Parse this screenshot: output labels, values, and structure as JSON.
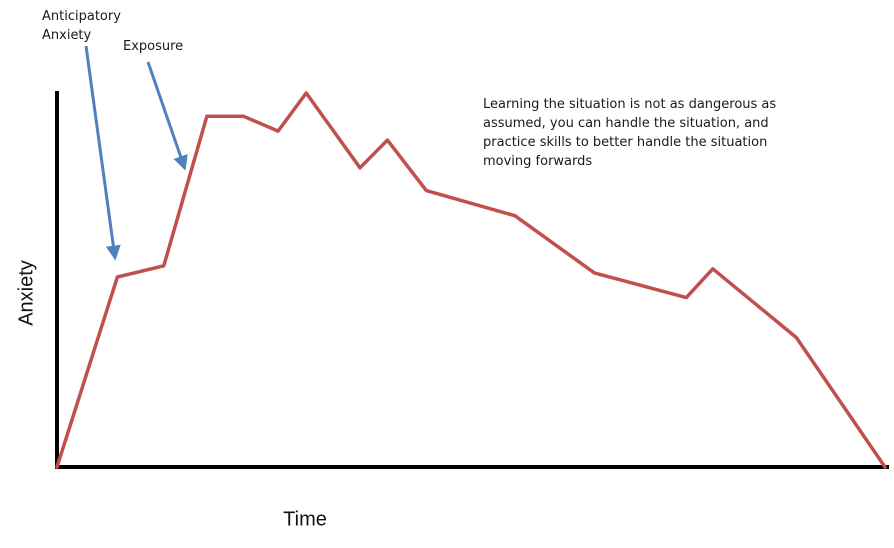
{
  "chart_data": {
    "type": "line",
    "title": "",
    "xlabel": "Time",
    "ylabel": "Anxiety",
    "xlim": [
      0,
      100
    ],
    "ylim": [
      0,
      100
    ],
    "grid": false,
    "legend": "none",
    "line_color": "#c0504d",
    "annotation_color": "#4f81bd",
    "series": [
      {
        "x": [
          0,
          7.3,
          12.9,
          18.1,
          22.5,
          26.7,
          30.1,
          36.6,
          39.9,
          44.6,
          55.3,
          64.9,
          76.0,
          79.2,
          89.3,
          100
        ],
        "y": [
          0,
          50.8,
          53.8,
          93.8,
          93.8,
          89.8,
          100,
          80.0,
          87.4,
          73.9,
          67.2,
          51.9,
          45.3,
          53.0,
          34.6,
          0
        ]
      }
    ],
    "annotations": [
      {
        "text": "Anticipatory Anxiety",
        "arrow_to": {
          "x": 7.0,
          "y": 56
        }
      },
      {
        "text": "Exposure",
        "arrow_to": {
          "x": 15.4,
          "y": 80
        }
      },
      {
        "text": "Learning the situation is not as dangerous as assumed, you can handle the situation, and practice skills to better handle the situation moving forwards"
      }
    ]
  }
}
